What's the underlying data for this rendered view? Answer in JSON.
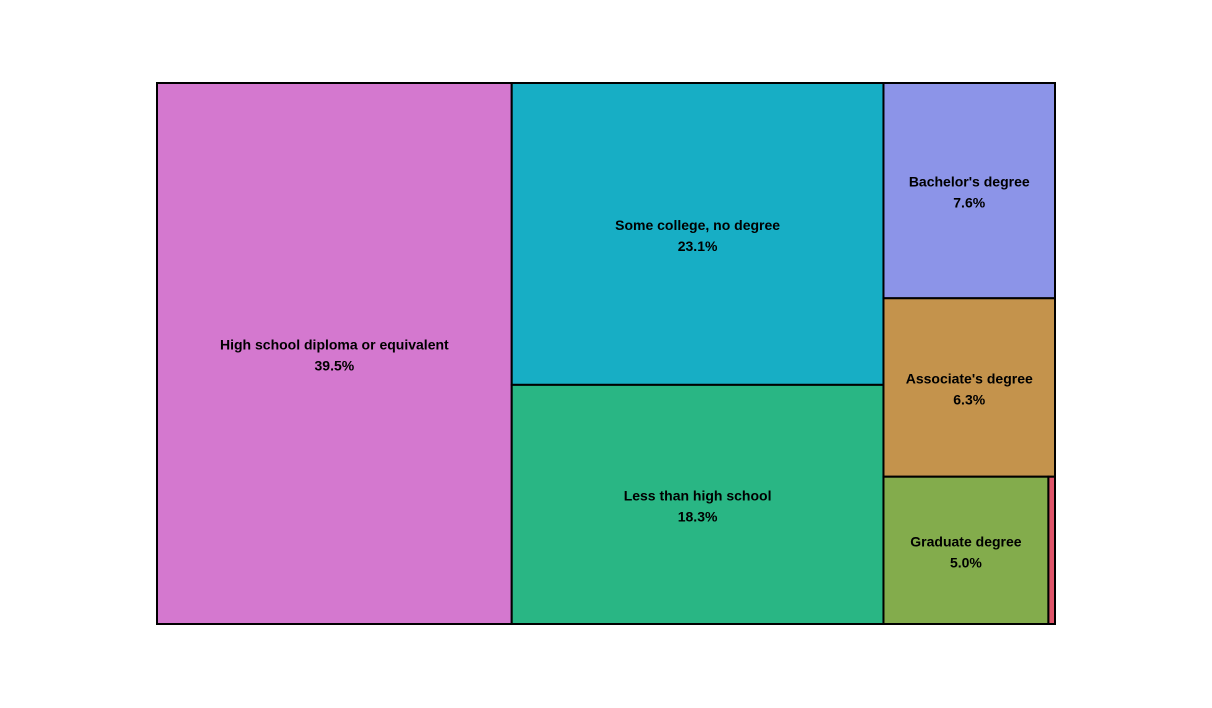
{
  "chart_data": {
    "type": "treemap",
    "title": "",
    "items": [
      {
        "label": "High school diploma or equivalent",
        "value": 39.5,
        "value_text": "39.5%",
        "color": "#d478cf"
      },
      {
        "label": "Some college, no degree",
        "value": 23.1,
        "value_text": "23.1%",
        "color": "#17aec5"
      },
      {
        "label": "Less than high school",
        "value": 18.3,
        "value_text": "18.3%",
        "color": "#29b684"
      },
      {
        "label": "Bachelor's degree",
        "value": 7.6,
        "value_text": "7.6%",
        "color": "#8c94e8"
      },
      {
        "label": "Associate's degree",
        "value": 6.3,
        "value_text": "6.3%",
        "color": "#c4934c"
      },
      {
        "label": "Graduate degree",
        "value": 5.0,
        "value_text": "5.0%",
        "color": "#83ac4c"
      },
      {
        "label": "",
        "value": 0.2,
        "value_text": "",
        "color": "#e0556a"
      }
    ]
  }
}
